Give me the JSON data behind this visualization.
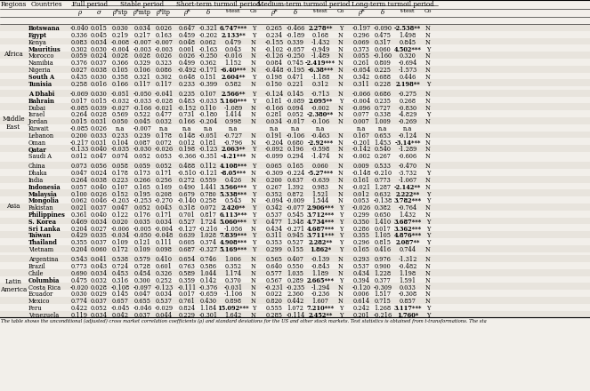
{
  "footnote": "The table shows the unconditional (adjusted) cross market correlation coefficients (ρ) and standard deviations for the US and other stock markets. Test statistics is obtained from t-transformations. The sta",
  "regions": [
    {
      "name": "Africa",
      "rows": [
        [
          "Botswana",
          "-0.040",
          "0.015",
          "0.030",
          "0.034",
          "0.026",
          "0.647",
          "-0.321",
          "6.747***",
          "Y",
          "0.265",
          "-0.466",
          "2.278**",
          "Y",
          "-0.197",
          "-0.090",
          "-2.538**",
          "N"
        ],
        [
          "Egypt",
          "0.336",
          "0.045",
          "0.219",
          "0.217",
          "0.163",
          "0.459",
          "-0.202",
          "2.133**",
          "Y",
          "0.234",
          "-0.189",
          "0.168",
          "N",
          "0.296",
          "0.475",
          "1.498",
          "N"
        ],
        [
          "Kenya",
          "0.083",
          "0.034",
          "-0.008",
          "-0.007",
          "-0.007",
          "0.048",
          "0.062",
          "0.479",
          "N",
          "-0.155",
          "0.339",
          "-1.432",
          "N",
          "0.069",
          "0.317",
          "0.845",
          "N"
        ],
        [
          "Mauritius",
          "0.302",
          "0.030",
          "-0.004",
          "-0.003",
          "-0.003",
          "0.001",
          "-0.163",
          "0.043",
          "N",
          "-0.102",
          "-0.057",
          "-0.949",
          "N",
          "0.373",
          "0.060",
          "4.502***",
          "Y"
        ],
        [
          "Morocco",
          "0.059",
          "0.024",
          "0.028",
          "0.028",
          "0.026",
          "0.026",
          "-0.250",
          "-0.016",
          "N",
          "-0.126",
          "-0.250",
          "-1.489",
          "N",
          "0.055",
          "-0.160",
          "0.320",
          "N"
        ],
        [
          "Namibia",
          "0.376",
          "0.037",
          "0.366",
          "0.329",
          "0.323",
          "0.499",
          "0.362",
          "1.152",
          "N",
          "0.084",
          "0.745",
          "-2.419***",
          "N",
          "0.261",
          "0.809",
          "-0.694",
          "N"
        ],
        [
          "Nigeria",
          "0.027",
          "0.038",
          "0.105",
          "0.106",
          "0.086",
          "-0.492",
          "-0.171",
          "-6.40***",
          "N",
          "-0.448",
          "-0.195",
          "-6.38***",
          "N",
          "-0.054",
          "0.225",
          "-1.573",
          "N"
        ],
        [
          "South A",
          "0.435",
          "0.030",
          "0.358",
          "0.321",
          "0.302",
          "0.648",
          "0.151",
          "2.604**",
          "Y",
          "0.198",
          "0.471",
          "-1.188",
          "N",
          "0.342",
          "0.688",
          "0.446",
          "N"
        ],
        [
          "Tunisia",
          "0.258",
          "0.016",
          "0.166",
          "0.117",
          "0.117",
          "0.233",
          "-0.399",
          "0.582",
          "N",
          "0.150",
          "0.221",
          "0.312",
          "N",
          "0.311",
          "0.228",
          "2.198**",
          "Y"
        ]
      ]
    },
    {
      "name": "Middle\nEast",
      "rows": [
        [
          "A Dhabi",
          "-0.069",
          "0.030",
          "-0.051",
          "-0.050",
          "-0.041",
          "0.235",
          "0.107",
          "2.566**",
          "Y",
          "-0.124",
          "0.145",
          "-0.713",
          "N",
          "-0.066",
          "0.686",
          "-0.275",
          "N"
        ],
        [
          "Bahrain",
          "0.017",
          "0.015",
          "-0.032",
          "-0.033",
          "-0.028",
          "0.483",
          "-0.033",
          "5.160***",
          "Y",
          "0.181",
          "-0.089",
          "2.095**",
          "Y",
          "-0.004",
          "0.235",
          "0.268",
          "N"
        ],
        [
          "Dubai",
          "-0.085",
          "0.039",
          "-0.027",
          "-0.166",
          "-0.021",
          "-0.152",
          "0.110",
          "-1.089",
          "N",
          "-0.166",
          "0.094",
          "-0.002",
          "N",
          "-0.096",
          "0.727",
          "-0.830",
          "N"
        ],
        [
          "Israel",
          "0.264",
          "0.028",
          "0.569",
          "0.522",
          "0.477",
          "0.731",
          "-0.180",
          "1.414",
          "N",
          "0.281",
          "0.052",
          "-2.380**",
          "N",
          "0.077",
          "0.338",
          "-4.829",
          "Y"
        ],
        [
          "Jordan",
          "0.015",
          "0.031",
          "0.050",
          "0.045",
          "0.032",
          "0.166",
          "-0.204",
          "0.998",
          "N",
          "0.034",
          "-0.017",
          "-0.106",
          "N",
          "0.007",
          "1.009",
          "-0.269",
          "N"
        ],
        [
          "Kuwait",
          "-0.085",
          "0.026",
          "n.a",
          "-0.007",
          "n.a",
          "n.a",
          "n.a",
          "n.a",
          "",
          "n.a",
          "n.a",
          "n.a",
          "",
          "n.a",
          "n.a",
          "n.a",
          ""
        ],
        [
          "Lebanon",
          "0.200",
          "0.033",
          "0.233",
          "0.239",
          "0.178",
          "0.148",
          "-0.051",
          "-0.727",
          "N",
          "0.191",
          "-0.106",
          "-0.463",
          "N",
          "0.167",
          "0.653",
          "-0.124",
          "N"
        ],
        [
          "Oman",
          "-0.217",
          "0.031",
          "0.104",
          "0.087",
          "0.072",
          "0.012",
          "0.181",
          "-0.796",
          "N",
          "-0.204",
          "0.680",
          "-2.92***",
          "N",
          "-0.201",
          "1.453",
          "-3.14***",
          "N"
        ],
        [
          "Qatar",
          "-0.133",
          "0.040",
          "-0.035",
          "-0.030",
          "-0.026",
          "0.198",
          "-0.123",
          "2.063**",
          "Y",
          "-0.092",
          "0.196",
          "-0.598",
          "N",
          "-0.142",
          "0.540",
          "-1.289",
          "N"
        ],
        [
          "Saudi A",
          "0.012",
          "0.047",
          "0.074",
          "0.052",
          "0.053",
          "-0.366",
          "-0.351",
          "-4.21***",
          "N",
          "-0.099",
          "0.294",
          "-1.474",
          "N",
          "-0.002",
          "0.267",
          "-0.606",
          "N"
        ]
      ]
    },
    {
      "name": "Asia",
      "rows": [
        [
          "China",
          "0.073",
          "0.056",
          "0.058",
          "0.059",
          "0.052",
          "0.488",
          "0.112",
          "4.108***",
          "Y",
          "0.065",
          "0.165",
          "0.060",
          "N",
          "0.009",
          "0.533",
          "-0.470",
          "N"
        ],
        [
          "Dhaka",
          "0.047",
          "0.024",
          "0.178",
          "0.173",
          "0.171",
          "-0.510",
          "-0.121",
          "-8.05***",
          "N",
          "-0.309",
          "-0.224",
          "-5.27***",
          "N",
          "-0.148",
          "-0.210",
          "-3.732",
          "Y"
        ],
        [
          "India",
          "0.264",
          "0.038",
          "0.223",
          "0.266",
          "0.256",
          "0.272",
          "0.559",
          "0.426",
          "N",
          "0.200",
          "0.637",
          "-0.639",
          "N",
          "0.161",
          "0.773",
          "-1.067",
          "N"
        ],
        [
          "Indonesia",
          "0.057",
          "0.040",
          "0.107",
          "0.165",
          "0.169",
          "0.490",
          "1.441",
          "3.566***",
          "Y",
          "0.267",
          "1.392",
          "0.983",
          "N",
          "-0.021",
          "1.287",
          "-2.142**",
          "N"
        ],
        [
          "Malaysia",
          "0.100",
          "0.026",
          "0.152",
          "0.195",
          "0.208",
          "0.679",
          "0.780",
          "5.338***",
          "Y",
          "0.352",
          "0.872",
          "1.521",
          "N",
          "0.012",
          "0.632",
          "2.222**",
          "Y"
        ],
        [
          "Mongolia",
          "0.062",
          "0.046",
          "-0.203",
          "-0.253",
          "-0.270",
          "-0.140",
          "0.258",
          "0.543",
          "N",
          "-0.094",
          "-0.009",
          "1.544",
          "N",
          "0.053",
          "-0.138",
          "3.782***",
          "Y"
        ],
        [
          "Pakistan",
          "0.021",
          "0.037",
          "0.047",
          "0.052",
          "0.043",
          "0.318",
          "0.072",
          "2.420**",
          "Y",
          "0.342",
          "-0.077",
          "2.906***",
          "Y",
          "-0.026",
          "0.382",
          "-0.764",
          "N"
        ],
        [
          "Philippines",
          "0.361",
          "0.040",
          "0.122",
          "0.176",
          "0.171",
          "0.701",
          "0.817",
          "6.113***",
          "Y",
          "0.537",
          "0.545",
          "3.712***",
          "Y",
          "0.299",
          "0.650",
          "1.432",
          "N"
        ],
        [
          "S. Korea",
          "0.469",
          "0.034",
          "0.020",
          "0.035",
          "0.034",
          "0.527",
          "1.724",
          "5.060***",
          "Y",
          "0.477",
          "1.348",
          "4.734***",
          "Y",
          "0.350",
          "1.410",
          "3.687***",
          "Y"
        ],
        [
          "Sri Lanka",
          "0.204",
          "0.027",
          "-0.006",
          "-0.005",
          "-0.004",
          "-0.127",
          "-0.216",
          "-1.056",
          "N",
          "0.434",
          "-0.271",
          "4.687***",
          "Y",
          "0.286",
          "0.017",
          "3.362***",
          "Y"
        ],
        [
          "Taiwan",
          "0.429",
          "0.035",
          "-0.034",
          "-0.050",
          "-0.048",
          "0.639",
          "1.028",
          "7.839***",
          "Y",
          "0.311",
          "0.945",
          "3.711***",
          "Y",
          "0.355",
          "1.105",
          "4.876***",
          "Y"
        ],
        [
          "Thailand",
          "0.355",
          "0.037",
          "0.109",
          "0.121",
          "0.111",
          "0.605",
          "0.374",
          "4.908***",
          "Y",
          "0.353",
          "0.527",
          "2.282**",
          "Y",
          "0.296",
          "0.815",
          "2.087**",
          "Y"
        ],
        [
          "Vietnam",
          "0.204",
          "0.060",
          "0.172",
          "0.109",
          "0.098",
          "0.687",
          "-0.327",
          "5.169***",
          "Y",
          "0.299",
          "0.155",
          "1.862*",
          "Y",
          "0.165",
          "0.416",
          "0.744",
          "N"
        ]
      ]
    },
    {
      "name": "Latin\nAmerica",
      "rows": [
        [
          "Argentina",
          "0.543",
          "0.041",
          "0.538",
          "0.579",
          "0.410",
          "0.654",
          "0.746",
          "1.006",
          "N",
          "0.565",
          "0.407",
          "-0.139",
          "N",
          "0.293",
          "0.976",
          "-1.312",
          "N"
        ],
        [
          "Brazil",
          "0.773",
          "0.043",
          "0.724",
          "0.728",
          "0.601",
          "0.763",
          "0.586",
          "0.352",
          "N",
          "0.640",
          "0.550",
          "-0.843",
          "N",
          "0.537",
          "0.900",
          "-0.482",
          "N"
        ],
        [
          "Chile",
          "0.690",
          "0.034",
          "0.453",
          "0.454",
          "0.326",
          "0.589",
          "1.044",
          "1.174",
          "N",
          "0.577",
          "1.035",
          "1.189",
          "N",
          "0.434",
          "1.228",
          "1.198",
          "N"
        ],
        [
          "Columbia",
          "0.475",
          "0.032",
          "0.316",
          "0.300",
          "0.252",
          "0.359",
          "0.142",
          "0.370",
          "N",
          "0.567",
          "0.289",
          "2.665***",
          "Y",
          "0.394",
          "0.377",
          "1.591",
          "N"
        ],
        [
          "Costa Rica",
          "-0.020",
          "0.028",
          "-0.108",
          "-0.097",
          "-0.123",
          "-0.111",
          "-0.376",
          "-0.031",
          "N",
          "-0.231",
          "-0.235",
          "-1.294",
          "N",
          "-0.120",
          "-0.309",
          "0.033",
          "N"
        ],
        [
          "Ecuador",
          "0.030",
          "0.029",
          "0.145",
          "0.047",
          "0.034",
          "0.017",
          "-0.659",
          "-1.106",
          "N",
          "0.022",
          "2.360",
          "-0.236",
          "N",
          "0.006",
          "1.517",
          "-0.308",
          "N"
        ],
        [
          "Mexico",
          "0.774",
          "0.037",
          "0.657",
          "0.655",
          "0.537",
          "0.761",
          "0.430",
          "0.898",
          "N",
          "0.820",
          "0.442",
          "1.607",
          "N",
          "0.614",
          "0.715",
          "0.857",
          "N"
        ],
        [
          "Peru",
          "0.422",
          "0.052",
          "-0.045",
          "-0.046",
          "-0.029",
          "0.824",
          "1.184",
          "15.092***",
          "Y",
          "0.555",
          "1.072",
          "7.210***",
          "Y",
          "0.242",
          "1.268",
          "3.117***",
          "Y"
        ],
        [
          "Venezuela",
          "0.119",
          "0.034",
          "0.042",
          "0.037",
          "0.044",
          "0.229",
          "-0.301",
          "1.642",
          "N",
          "0.285",
          "-0.114",
          "2.452**",
          "Y",
          "0.201",
          "-0.216",
          "1.760*",
          "Y"
        ]
      ]
    }
  ],
  "bold_countries": [
    "Botswana",
    "Egypt",
    "Mauritius",
    "South A",
    "Tunisia",
    "A Dhabi",
    "Bahrain",
    "Qatar",
    "Indonesia",
    "Malaysia",
    "Mongolia",
    "Philippines",
    "S. Korea",
    "Sri Lanka",
    "Taiwan",
    "Thailand",
    "Columbia"
  ],
  "bg_color": "#f2efea"
}
